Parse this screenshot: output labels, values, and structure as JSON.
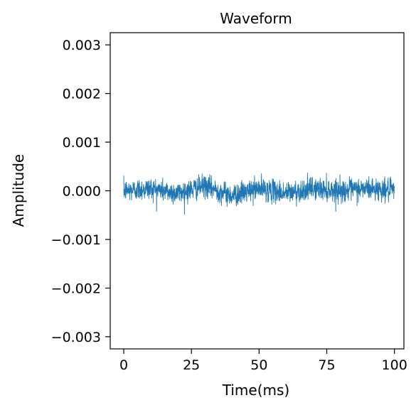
{
  "chart_data": {
    "type": "line",
    "title": "Waveform",
    "xlabel": "Time(ms)",
    "ylabel": "Amplitude",
    "xlim": [
      -5,
      103.5
    ],
    "ylim": [
      -0.00325,
      0.00325
    ],
    "x_ticks": [
      0,
      25,
      50,
      75,
      100
    ],
    "x_tick_labels": [
      "0",
      "25",
      "50",
      "75",
      "100"
    ],
    "y_ticks": [
      0.003,
      0.002,
      0.001,
      0.0,
      -0.001,
      -0.002,
      -0.003
    ],
    "y_tick_labels": [
      "0.003",
      "0.002",
      "0.001",
      "0.000",
      "−0.001",
      "−0.002",
      "−0.003"
    ],
    "grid": false,
    "series": [
      {
        "color": "#1f77b4",
        "x_range": [
          0,
          100
        ],
        "mean": 0.0,
        "approx_amplitude": 0.00015,
        "envelope_max": 0.0004,
        "envelope_min": -0.0005,
        "x": [
          0,
          10,
          20,
          30,
          40,
          50,
          60,
          70,
          80,
          90,
          100
        ],
        "values": [
          0.0,
          5e-05,
          -5e-05,
          0.0001,
          -0.0001,
          5e-05,
          -5e-05,
          5e-05,
          0.0,
          5e-05,
          0.0
        ]
      }
    ]
  }
}
